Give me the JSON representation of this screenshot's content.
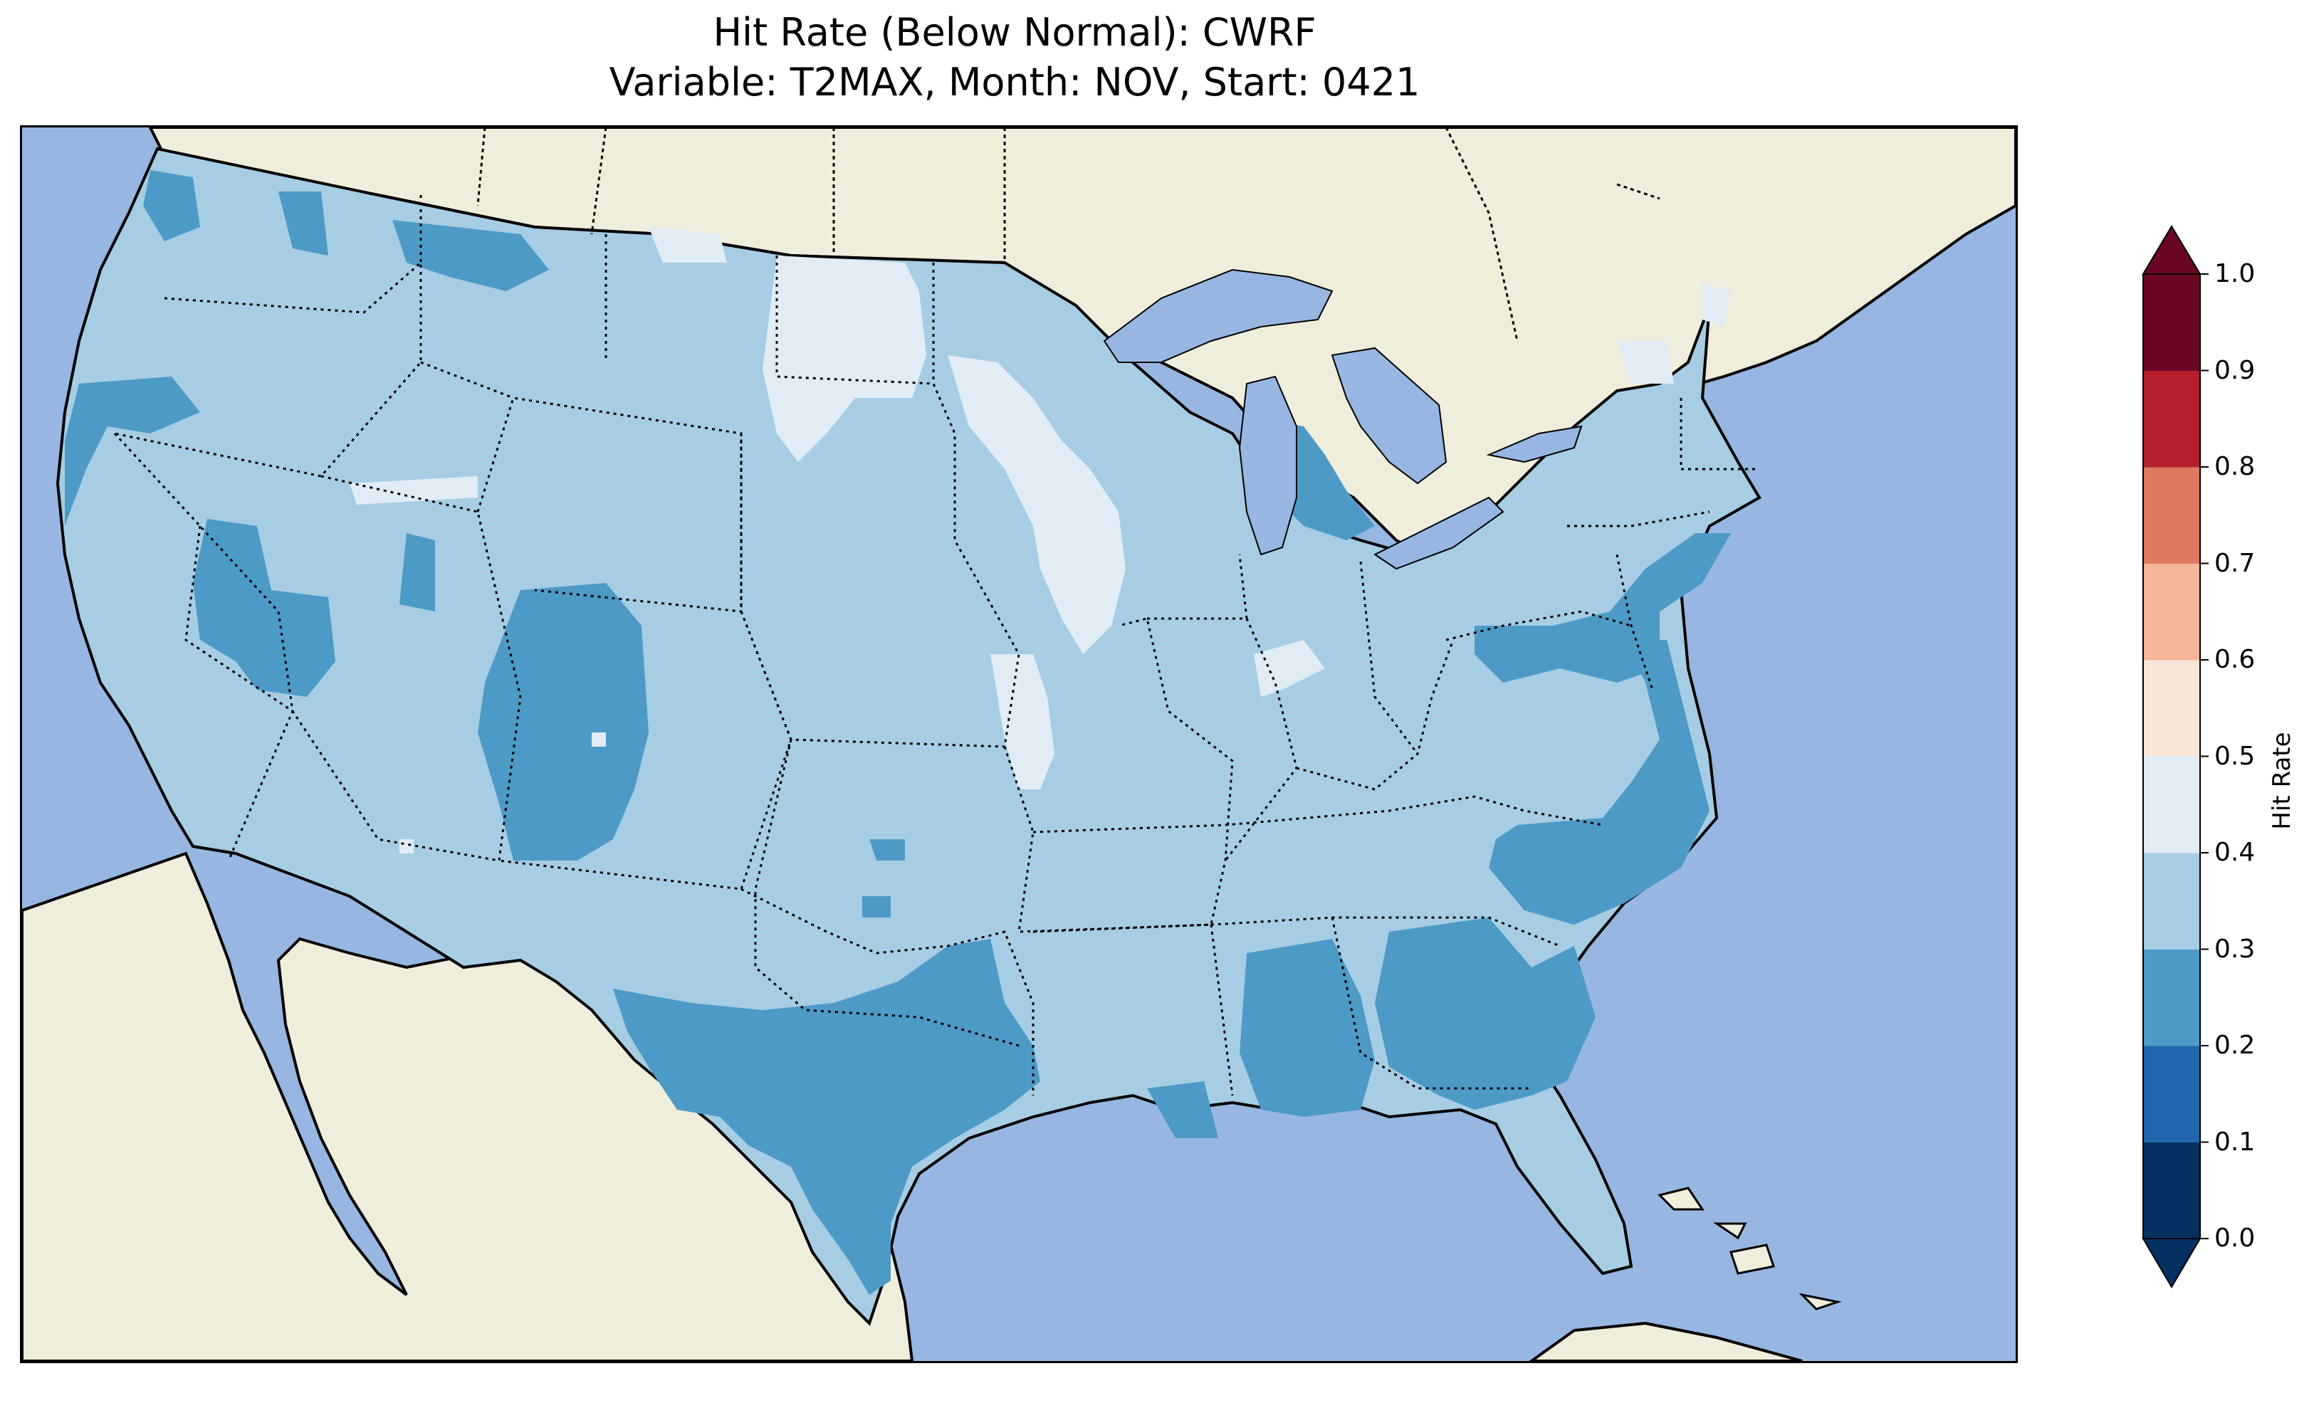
{
  "title": {
    "line1": "Hit Rate (Below Normal): CWRF",
    "line2": "Variable: T2MAX, Month: NOV, Start: 0421"
  },
  "colorbar": {
    "label": "Hit Rate",
    "ticks": [
      "0.0",
      "0.1",
      "0.2",
      "0.3",
      "0.4",
      "0.5",
      "0.6",
      "0.7",
      "0.8",
      "0.9",
      "1.0"
    ],
    "bins": [
      {
        "range": "0.0-0.1",
        "color": "#053061"
      },
      {
        "range": "0.1-0.2",
        "color": "#2166ac"
      },
      {
        "range": "0.2-0.3",
        "color": "#4d9ac7"
      },
      {
        "range": "0.3-0.4",
        "color": "#a6cde3"
      },
      {
        "range": "0.4-0.5",
        "color": "#e1ecf4"
      },
      {
        "range": "0.5-0.6",
        "color": "#f9e4da"
      },
      {
        "range": "0.6-0.7",
        "color": "#f6b596"
      },
      {
        "range": "0.7-0.8",
        "color": "#de7960"
      },
      {
        "range": "0.8-0.9",
        "color": "#b51f2e"
      },
      {
        "range": "0.9-1.0",
        "color": "#6a0624"
      }
    ],
    "extend": "both"
  },
  "map": {
    "region": "Contiguous United States",
    "colors": {
      "ocean": "#97b6e1",
      "land": "#efeddb",
      "lakes": "#97b6e1"
    },
    "dominant_hit_rate_range": "0.3-0.4"
  }
}
